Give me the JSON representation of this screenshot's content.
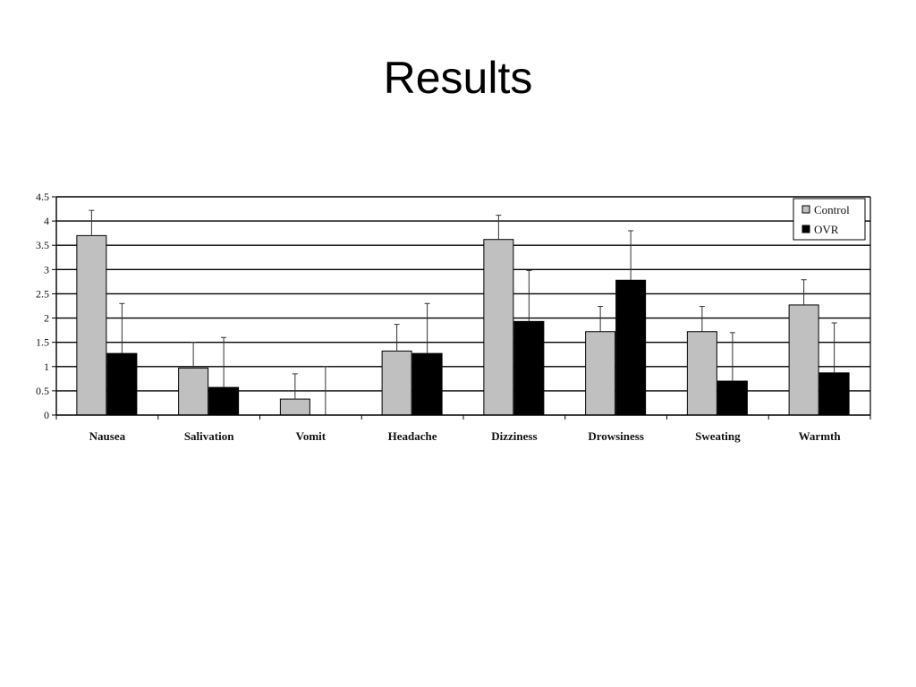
{
  "slide": {
    "title": "Results"
  },
  "chart_data": {
    "type": "bar",
    "title": "",
    "xlabel": "",
    "ylabel": "",
    "ylim": [
      0,
      4.5
    ],
    "yticks": [
      "0",
      "0.5",
      "1",
      "1.5",
      "2",
      "2.5",
      "3",
      "3.5",
      "4",
      "4.5"
    ],
    "grid": "horizontal",
    "legend_position": "top-right",
    "categories": [
      "Nausea",
      "Salivation",
      "Vomit",
      "Headache",
      "Dizziness",
      "Drowsiness",
      "Sweating",
      "Warmth"
    ],
    "series": [
      {
        "name": "Control",
        "color": "#c0c0c0",
        "values": [
          3.7,
          0.97,
          0.33,
          1.32,
          3.62,
          1.72,
          1.72,
          2.27
        ],
        "errors": [
          0.52,
          0.53,
          0.52,
          0.55,
          0.5,
          0.52,
          0.52,
          0.52
        ]
      },
      {
        "name": "OVR",
        "color": "#000000",
        "values": [
          1.27,
          0.57,
          0,
          1.27,
          1.93,
          2.78,
          0.7,
          0.87
        ],
        "errors": [
          1.03,
          1.03,
          1.0,
          1.03,
          1.05,
          1.02,
          1.0,
          1.03
        ]
      }
    ]
  }
}
